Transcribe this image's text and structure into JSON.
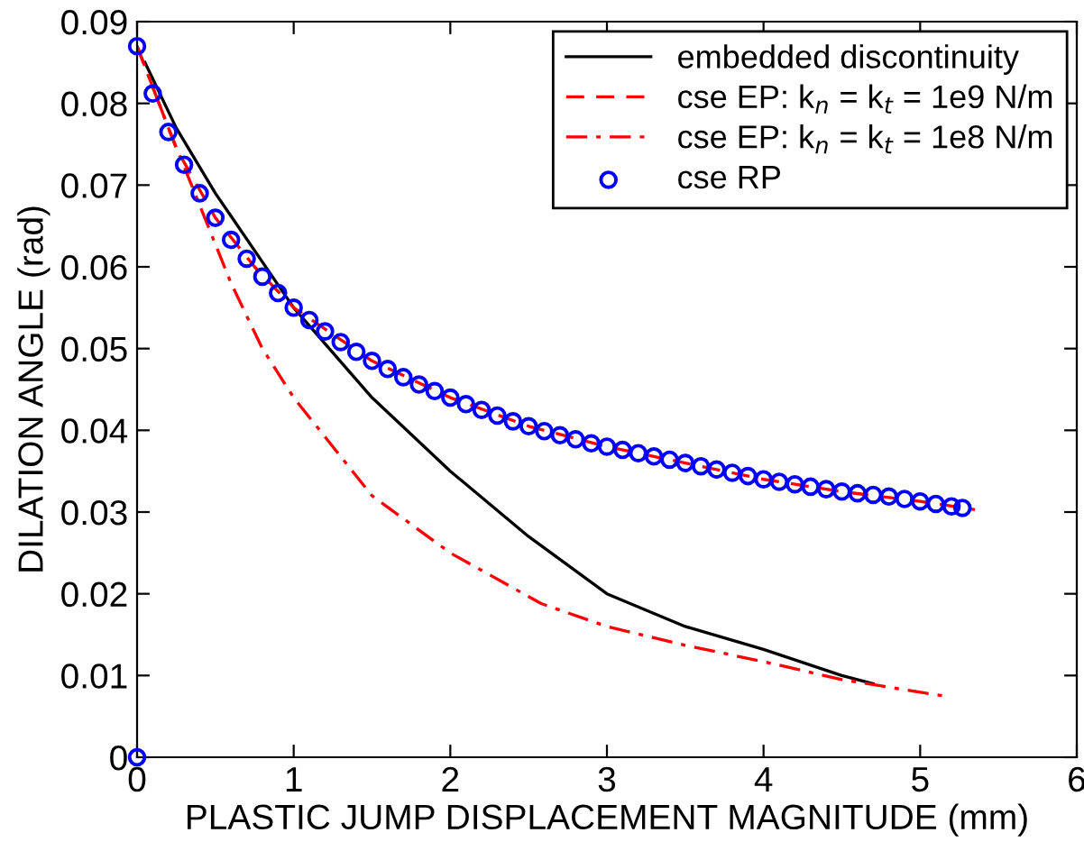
{
  "chart_data": {
    "type": "line",
    "xlabel": "PLASTIC JUMP DISPLACEMENT MAGNITUDE (mm)",
    "ylabel": "DILATION ANGLE (rad)",
    "xlim": [
      0,
      6
    ],
    "xticks": [
      0,
      1,
      2,
      3,
      4,
      5,
      6
    ],
    "ylim": [
      0,
      0.09
    ],
    "yticks": [
      0,
      0.01,
      0.02,
      0.03,
      0.04,
      0.05,
      0.06,
      0.07,
      0.08,
      0.09
    ],
    "grid": false,
    "legend": "top right",
    "series": [
      {
        "name": "embedded discontinuity",
        "color": "#000000",
        "line_style": "solid",
        "marker": "none",
        "x": [
          0.05,
          0.25,
          0.5,
          0.75,
          1,
          1.5,
          2,
          2.5,
          3,
          3.5,
          4,
          4.5,
          4.7
        ],
        "values": [
          0.085,
          0.077,
          0.069,
          0.062,
          0.055,
          0.044,
          0.035,
          0.027,
          0.02,
          0.016,
          0.0132,
          0.01,
          0.009
        ]
      },
      {
        "name": "cse EP: k$_{n}$ = k$_{t}$ = 1e9 N/m",
        "color": "#ff0000",
        "line_style": "dashed",
        "marker": "none",
        "x": [
          0,
          0.25,
          0.5,
          0.75,
          1,
          1.5,
          2,
          2.5,
          3,
          3.5,
          4,
          4.5,
          5,
          5.35
        ],
        "values": [
          0.087,
          0.0745,
          0.066,
          0.06,
          0.055,
          0.0485,
          0.044,
          0.0405,
          0.038,
          0.036,
          0.034,
          0.0325,
          0.0313,
          0.0303
        ]
      },
      {
        "name": "cse EP: k$_{n}$ = k$_{t}$ = 1e8 N/m",
        "color": "#ff0000",
        "line_style": "dashdot",
        "marker": "none",
        "x": [
          0,
          0.2,
          0.39,
          0.6,
          0.8,
          1,
          1.5,
          2,
          2.58,
          3,
          3.5,
          4,
          4.5,
          5.15
        ],
        "values": [
          0.087,
          0.077,
          0.068,
          0.058,
          0.05,
          0.044,
          0.032,
          0.025,
          0.0188,
          0.016,
          0.0137,
          0.0117,
          0.0095,
          0.0075
        ]
      },
      {
        "name": "cse RP",
        "type": "scatter",
        "color": "#0000ff",
        "marker": "circle",
        "x": [
          0,
          0,
          0.1,
          0.2,
          0.3,
          0.4,
          0.5,
          0.6,
          0.7,
          0.8,
          0.9,
          1.0,
          1.1,
          1.2,
          1.3,
          1.4,
          1.5,
          1.6,
          1.7,
          1.8,
          1.9,
          2.0,
          2.1,
          2.2,
          2.3,
          2.4,
          2.5,
          2.6,
          2.7,
          2.8,
          2.9,
          3.0,
          3.1,
          3.2,
          3.3,
          3.4,
          3.5,
          3.6,
          3.7,
          3.8,
          3.9,
          4.0,
          4.1,
          4.2,
          4.3,
          4.4,
          4.5,
          4.6,
          4.7,
          4.8,
          4.9,
          5.0,
          5.1,
          5.2,
          5.27
        ],
        "values": [
          0,
          0.087,
          0.0812,
          0.0765,
          0.0725,
          0.069,
          0.066,
          0.0633,
          0.061,
          0.0588,
          0.0568,
          0.055,
          0.0535,
          0.0521,
          0.0508,
          0.0496,
          0.0485,
          0.0475,
          0.0465,
          0.0456,
          0.0448,
          0.044,
          0.0432,
          0.0425,
          0.0418,
          0.0411,
          0.0405,
          0.0399,
          0.0394,
          0.0389,
          0.0384,
          0.038,
          0.0376,
          0.0372,
          0.0368,
          0.0364,
          0.036,
          0.0356,
          0.0352,
          0.0348,
          0.0344,
          0.034,
          0.0337,
          0.0334,
          0.0331,
          0.0328,
          0.0325,
          0.0323,
          0.0321,
          0.0319,
          0.0316,
          0.0313,
          0.031,
          0.0307,
          0.0305
        ]
      }
    ]
  }
}
